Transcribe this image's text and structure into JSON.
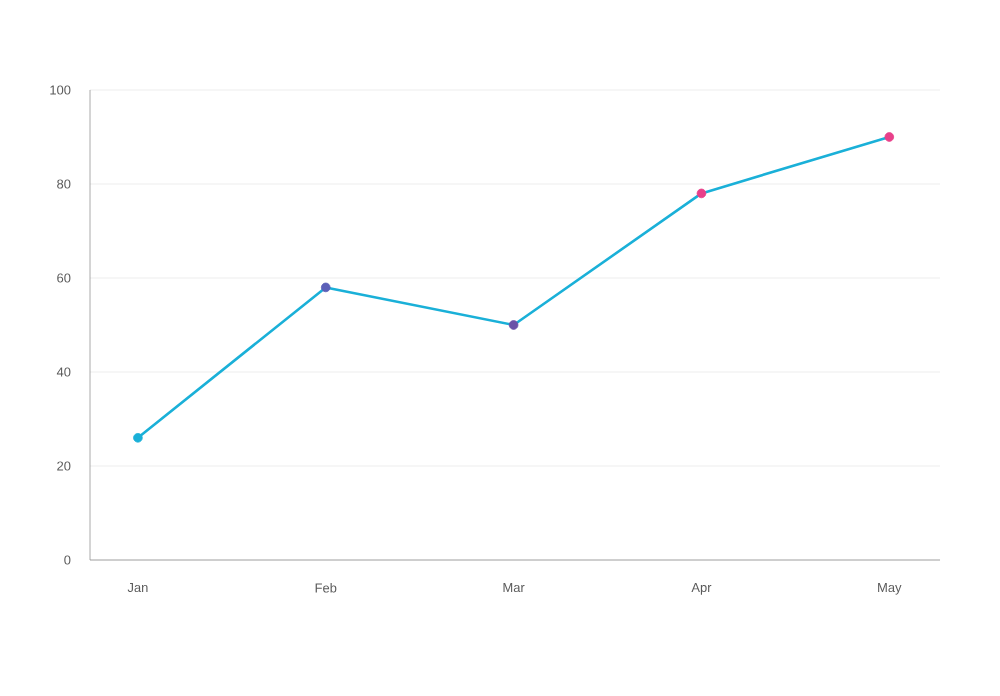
{
  "chart_data": {
    "type": "line",
    "categories": [
      "Jan",
      "Feb",
      "Mar",
      "Apr",
      "May"
    ],
    "series": [
      {
        "color": "#1ab0d8",
        "colors": [
          "#1ab0d8",
          "#5b5fb8",
          "#6b52a8",
          "#e8408a",
          "#e8408a"
        ],
        "values": [
          26,
          58,
          50,
          78,
          90
        ]
      }
    ],
    "ylim": [
      0,
      100
    ],
    "yticks": [
      0,
      20,
      40,
      60,
      80,
      100
    ],
    "grid": "y",
    "marker": "circle",
    "line_style": "solid"
  }
}
